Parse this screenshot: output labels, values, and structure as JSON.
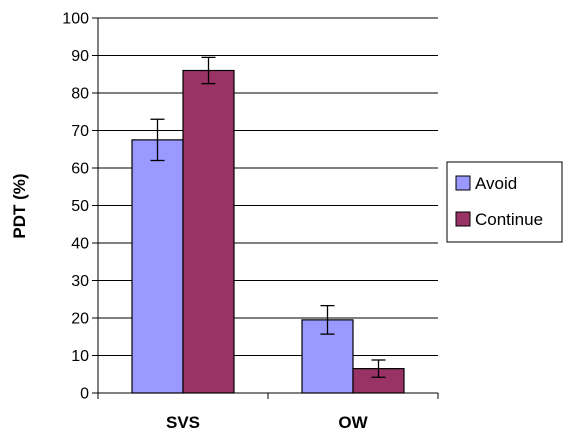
{
  "chart_data": {
    "type": "bar",
    "title": "",
    "xlabel": "",
    "ylabel": "PDT (%)",
    "ylim": [
      0,
      100
    ],
    "yticks": [
      0,
      10,
      20,
      30,
      40,
      50,
      60,
      70,
      80,
      90,
      100
    ],
    "categories": [
      "SVS",
      "OW"
    ],
    "series": [
      {
        "name": "Avoid",
        "color": "#9999ff",
        "values": [
          67.5,
          19.5
        ],
        "error": [
          5.5,
          3.8
        ]
      },
      {
        "name": "Continue",
        "color": "#993366",
        "values": [
          86,
          6.5
        ],
        "error": [
          3.5,
          2.3
        ]
      }
    ],
    "grid": true,
    "legend": "right"
  }
}
